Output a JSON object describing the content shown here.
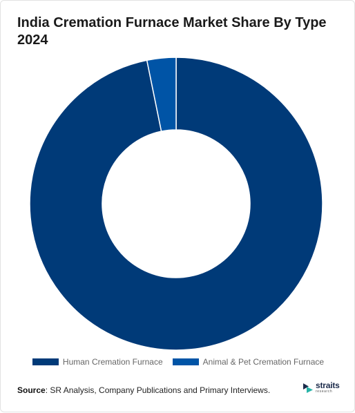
{
  "chart_data": {
    "type": "pie",
    "donut": true,
    "title": "India Cremation Furnace Market Share By Type 2024",
    "series": [
      {
        "name": "Human Cremation Furnace",
        "value": 96.8,
        "color": "#003a78"
      },
      {
        "name": "Animal & Pet Cremation Furnace",
        "value": 3.2,
        "color": "#0054a6"
      }
    ],
    "legend_position": "bottom"
  },
  "source": {
    "label": "Source",
    "text": ": SR Analysis, Company Publications and Primary Interviews."
  },
  "brand": {
    "name": "straits",
    "tagline": "research",
    "icon": "straits-logo-icon"
  }
}
